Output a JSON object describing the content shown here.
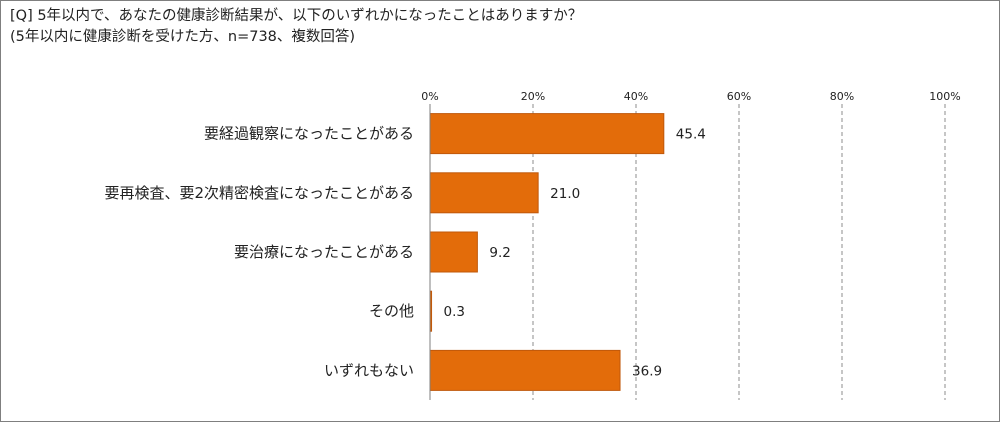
{
  "title": "[Q]  5年以内で、あなたの健康診断結果が、以下のいずれかになったことはありますか？",
  "subtitle": "(5年以内に健康診断を受けた方、n=738、複数回答)",
  "colors": {
    "bar": "#E36C0A",
    "bar_border": "#C0580A",
    "grid": "#8c8c8c",
    "axis": "#7f7f7f"
  },
  "chart_data": {
    "type": "bar",
    "orientation": "horizontal",
    "title": "[Q]  5年以内で、あなたの健康診断結果が、以下のいずれかになったことはありますか？",
    "subtitle": "(5年以内に健康診断を受けた方、n=738、複数回答)",
    "categories": [
      "要経過観察になったことがある",
      "要再検査、要2次精密検査になったことがある",
      "要治療になったことがある",
      "その他",
      "いずれもない"
    ],
    "values": [
      45.4,
      21.0,
      9.2,
      0.3,
      36.9
    ],
    "value_labels": [
      "45.4",
      "21.0",
      "9.2",
      "0.3",
      "36.9"
    ],
    "xlim": [
      0,
      100
    ],
    "ticks": [
      "0%",
      "20%",
      "40%",
      "60%",
      "80%",
      "100%"
    ],
    "tick_values": [
      0,
      20,
      40,
      60,
      80,
      100
    ],
    "grid": true,
    "grid_style": "dashed",
    "xlabel": "",
    "ylabel": ""
  }
}
